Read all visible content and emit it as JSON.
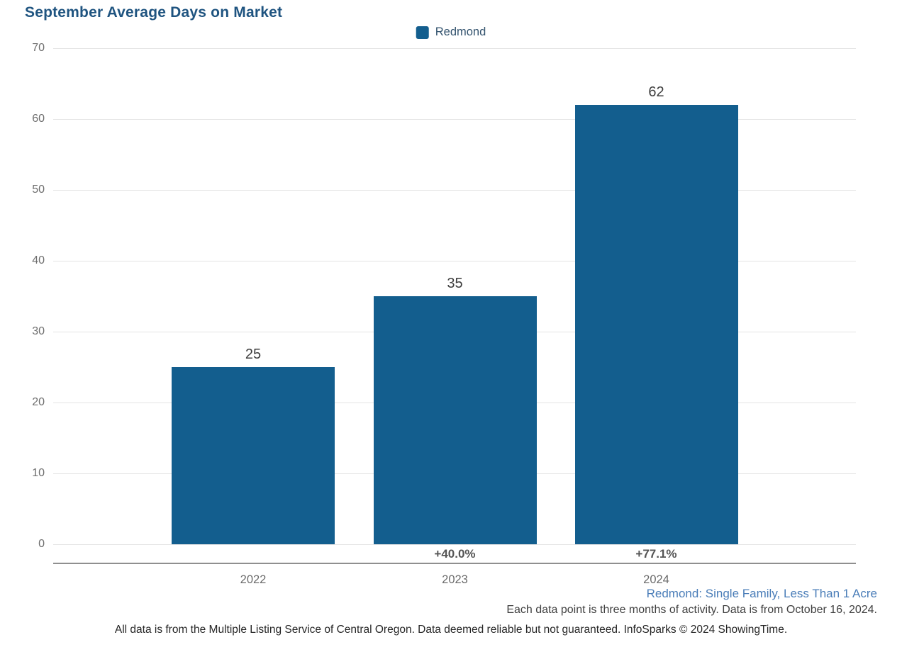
{
  "title": "September Average Days on Market",
  "legend": {
    "label": "Redmond",
    "swatch_color": "#135e8e"
  },
  "chart_data": {
    "type": "bar",
    "title": "September Average Days on Market",
    "series_name": "Redmond",
    "categories": [
      "2022",
      "2023",
      "2024"
    ],
    "values": [
      25,
      35,
      62
    ],
    "value_labels": [
      "25",
      "35",
      "62"
    ],
    "pct_change_labels": [
      "",
      "+40.0%",
      "+77.1%"
    ],
    "xlabel": "",
    "ylabel": "",
    "ylim": [
      0,
      70
    ],
    "yticks": [
      0,
      10,
      20,
      30,
      40,
      50,
      60,
      70
    ],
    "grid": true,
    "legend_position": "top-center",
    "bar_color": "#135e8e"
  },
  "footer": {
    "filter_line": "Redmond: Single Family, Less Than 1 Acre",
    "data_note": "Each data point is three months of activity. Data is from October 16, 2024.",
    "disclaimer": "All data is from the Multiple Listing Service of Central Oregon. Data deemed reliable but not guaranteed. InfoSparks © 2024 ShowingTime."
  },
  "colors": {
    "bar": "#135e8e",
    "title_text": "#1f5480",
    "legend_text": "#33536e",
    "gridline": "#e4e4e4",
    "axis_line": "#8f8f8f",
    "tick_text": "#6e6e6e",
    "value_text": "#3d3d3d",
    "pct_text": "#555555",
    "footer_filter_text": "#4a7db8",
    "footer_note_text": "#414141",
    "footer_disclaimer_text": "#262626"
  }
}
